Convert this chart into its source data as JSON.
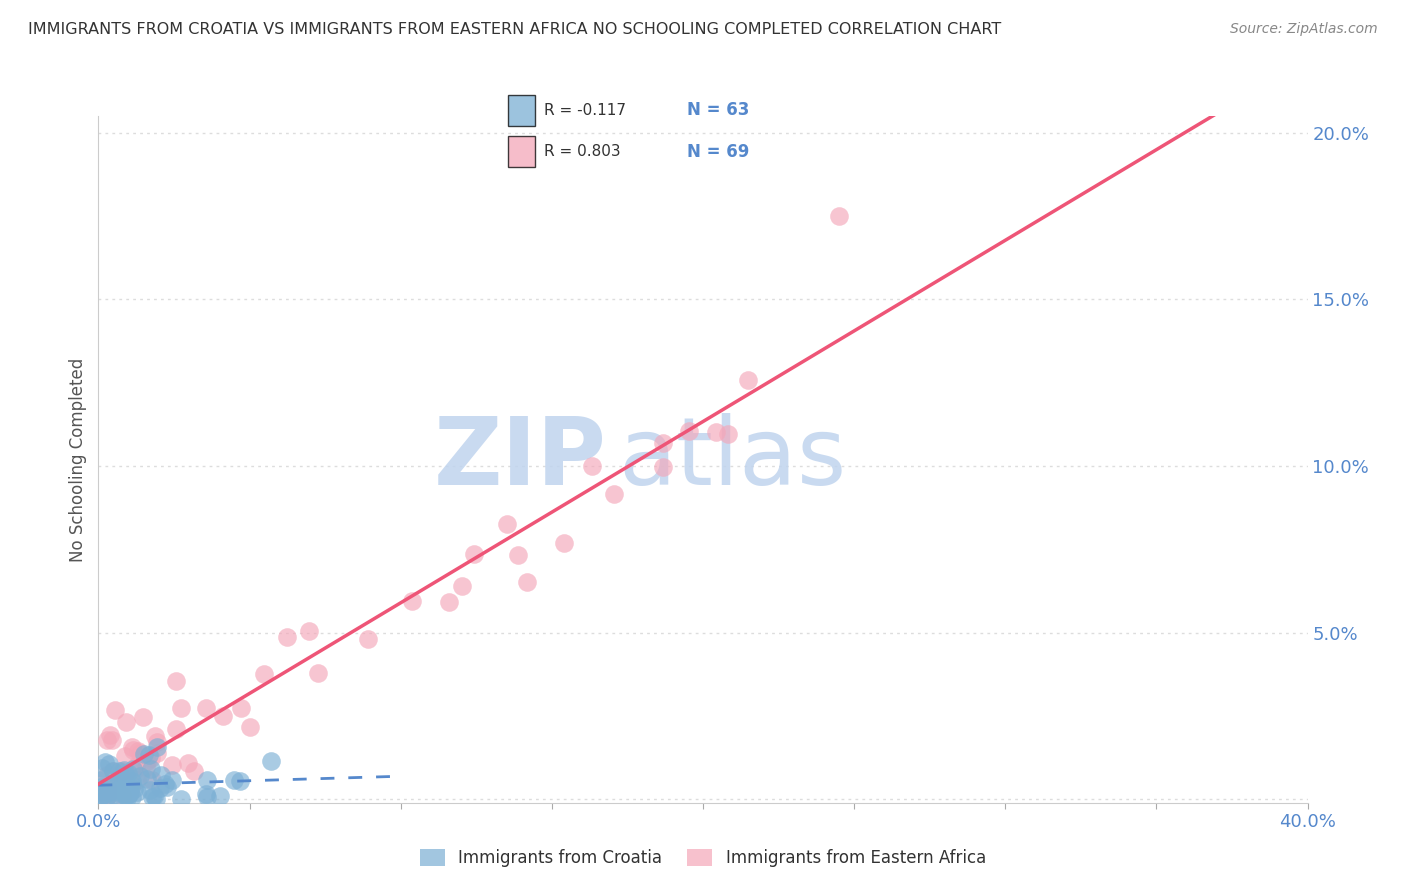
{
  "title": "IMMIGRANTS FROM CROATIA VS IMMIGRANTS FROM EASTERN AFRICA NO SCHOOLING COMPLETED CORRELATION CHART",
  "source": "Source: ZipAtlas.com",
  "ylabel": "No Schooling Completed",
  "croatia_R": -0.117,
  "croatia_N": 63,
  "eastern_africa_R": 0.803,
  "eastern_africa_N": 69,
  "croatia_color": "#7BAFD4",
  "eastern_africa_color": "#F4A7B9",
  "croatia_trend_color": "#5588CC",
  "eastern_africa_trend_color": "#EE5577",
  "watermark_zip_color": "#C8D8F0",
  "watermark_atlas_color": "#C8D8F0",
  "background_color": "#FFFFFF",
  "grid_color": "#DDDDDD",
  "title_color": "#333333",
  "axis_label_color": "#5588CC",
  "xlim": [
    0.0,
    0.4
  ],
  "ylim": [
    -0.001,
    0.205
  ],
  "yticks": [
    0.0,
    0.05,
    0.1,
    0.15,
    0.2
  ],
  "ytick_labels": [
    "",
    "5.0%",
    "10.0%",
    "15.0%",
    "20.0%"
  ],
  "xticks": [
    0.0,
    0.05,
    0.1,
    0.15,
    0.2,
    0.25,
    0.3,
    0.35,
    0.4
  ],
  "xtick_labels": [
    "0.0%",
    "",
    "",
    "",
    "",
    "",
    "",
    "",
    "40.0%"
  ]
}
